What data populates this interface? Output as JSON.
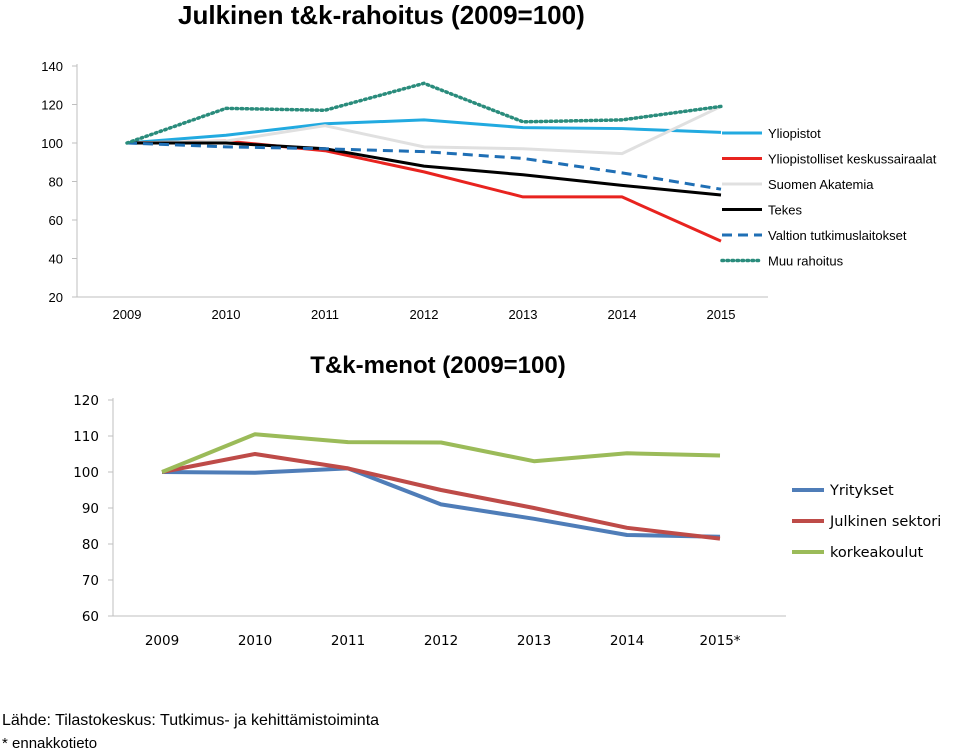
{
  "page": {
    "title": "Julkinen t&k-rahoitus (2009=100)",
    "source": "Lähde: Tilastokeskus: Tutkimus- ja kehittämistoiminta",
    "note": "* ennakkotieto"
  },
  "chart_data": [
    {
      "type": "line",
      "title": "Julkinen t&k-rahoitus (2009=100)",
      "categories": [
        "2009",
        "2010",
        "2011",
        "2012",
        "2013",
        "2014",
        "2015"
      ],
      "ylim": [
        20,
        140
      ],
      "yticks": [
        20,
        40,
        60,
        80,
        100,
        120,
        140
      ],
      "grid": false,
      "legend": "right",
      "series": [
        {
          "name": "Yliopistot",
          "values": [
            100,
            104,
            110,
            112,
            108,
            107.5,
            105.5
          ],
          "color": "#22AAE0",
          "style": "solid"
        },
        {
          "name": "Yliopistolliset keskussairaalat",
          "values": [
            100,
            101,
            96,
            85,
            72,
            72,
            49
          ],
          "color": "#E8231F",
          "style": "solid"
        },
        {
          "name": "Suomen Akatemia",
          "values": [
            100,
            101,
            109,
            98,
            97,
            94.5,
            119
          ],
          "color": "#E0E0E0",
          "style": "solid"
        },
        {
          "name": "Tekes",
          "values": [
            100,
            100,
            97,
            88,
            83.5,
            78,
            73
          ],
          "color": "#000000",
          "style": "solid"
        },
        {
          "name": "Valtion tutkimuslaitokset",
          "values": [
            100,
            98,
            97,
            95.5,
            92,
            84.5,
            76
          ],
          "color": "#1F6FB5",
          "style": "dashed"
        },
        {
          "name": "Muu rahoitus",
          "values": [
            100,
            118,
            117,
            131,
            111,
            112,
            119
          ],
          "color": "#2A8C7C",
          "style": "dotted"
        }
      ]
    },
    {
      "type": "line",
      "title": "T&k-menot  (2009=100)",
      "categories": [
        "2009",
        "2010",
        "2011",
        "2012",
        "2013",
        "2014",
        "2015*"
      ],
      "ylim": [
        60,
        120
      ],
      "yticks": [
        60,
        70,
        80,
        90,
        100,
        110,
        120
      ],
      "grid": false,
      "legend": "right",
      "series": [
        {
          "name": "Yritykset",
          "values": [
            100,
            99.8,
            101,
            91,
            87,
            82.5,
            82
          ],
          "color": "#4F7DB8",
          "style": "solid"
        },
        {
          "name": "Julkinen sektori",
          "values": [
            100,
            105,
            101,
            95,
            90,
            84.5,
            81.5
          ],
          "color": "#BE4B48",
          "style": "solid"
        },
        {
          "name": "korkeakoulut",
          "values": [
            100,
            110.5,
            108.3,
            108.2,
            103,
            105.2,
            104.6
          ],
          "color": "#9BBB59",
          "style": "solid"
        }
      ]
    }
  ]
}
